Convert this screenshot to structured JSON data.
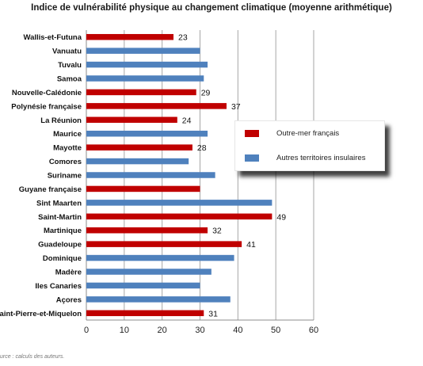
{
  "chart_data": {
    "type": "bar",
    "orientation": "horizontal",
    "title": "Indice de vulnérabilité physique au changement climatique (moyenne arithmétique)",
    "categories": [
      "Wallis-et-Futuna",
      "Vanuatu",
      "Tuvalu",
      "Samoa",
      "Nouvelle-Calédonie",
      "Polynésie française",
      "La Réunion",
      "Maurice",
      "Mayotte",
      "Comores",
      "Suriname",
      "Guyane française",
      "Sint Maarten",
      "Saint-Martin",
      "Martinique",
      "Guadeloupe",
      "Dominique",
      "Madère",
      "Iles Canaries",
      "Açores",
      "Saint-Pierre-et-Miquelon"
    ],
    "values": [
      23,
      30,
      32,
      31,
      29,
      37,
      24,
      32,
      28,
      27,
      34,
      30,
      49,
      49,
      32,
      41,
      39,
      33,
      30,
      38,
      31
    ],
    "groups": [
      0,
      1,
      1,
      1,
      0,
      0,
      0,
      1,
      0,
      1,
      1,
      0,
      1,
      0,
      0,
      0,
      1,
      1,
      1,
      1,
      0
    ],
    "data_labels": [
      "23",
      "",
      "",
      "",
      "29",
      "37",
      "24",
      "",
      "28",
      "",
      "",
      "",
      "",
      "49",
      "32",
      "41",
      "",
      "",
      "",
      "",
      "31"
    ],
    "series": [
      {
        "name": "Outre-mer français",
        "color": "#c00000"
      },
      {
        "name": "Autres territoires insulaires",
        "color": "#4f81bd"
      }
    ],
    "xlim": [
      0,
      60
    ],
    "xticks": [
      "0",
      "10",
      "20",
      "30",
      "40",
      "50",
      "60"
    ],
    "grid": "vertical",
    "legend_position": "right"
  },
  "source_text": "urce : calculs des auteurs."
}
